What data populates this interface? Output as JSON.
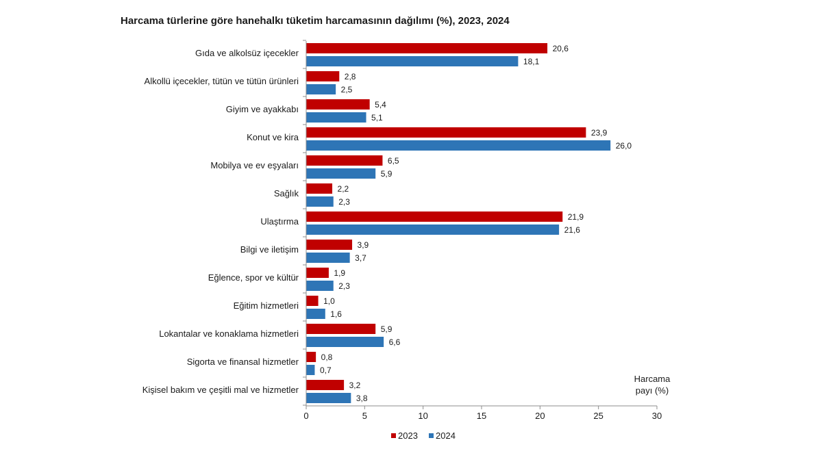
{
  "chart_data": {
    "type": "bar",
    "orientation": "horizontal",
    "title": "Harcama türlerine göre hanehalkı tüketim harcamasının dağılımı (%), 2023, 2024",
    "categories": [
      "Gıda ve alkolsüz içecekler",
      "Alkollü içecekler, tütün ve tütün ürünleri",
      "Giyim ve ayakkabı",
      "Konut ve kira",
      "Mobilya ve ev eşyaları",
      "Sağlık",
      "Ulaştırma",
      "Bilgi ve iletişim",
      "Eğlence, spor ve kültür",
      "Eğitim hizmetleri",
      "Lokantalar ve konaklama hizmetleri",
      "Sigorta ve finansal hizmetler",
      "Kişisel bakım ve çeşitli mal ve hizmetler"
    ],
    "series": [
      {
        "name": "2023",
        "color": "#c00000",
        "values": [
          20.6,
          2.8,
          5.4,
          23.9,
          6.5,
          2.2,
          21.9,
          3.9,
          1.9,
          1.0,
          5.9,
          0.8,
          3.2
        ],
        "labels": [
          "20,6",
          "2,8",
          "5,4",
          "23,9",
          "6,5",
          "2,2",
          "21,9",
          "3,9",
          "1,9",
          "1,0",
          "5,9",
          "0,8",
          "3,2"
        ]
      },
      {
        "name": "2024",
        "color": "#2e75b6",
        "values": [
          18.1,
          2.5,
          5.1,
          26.0,
          5.9,
          2.3,
          21.6,
          3.7,
          2.3,
          1.6,
          6.6,
          0.7,
          3.8
        ],
        "labels": [
          "18,1",
          "2,5",
          "5,1",
          "26,0",
          "5,9",
          "2,3",
          "21,6",
          "3,7",
          "2,3",
          "1,6",
          "6,6",
          "0,7",
          "3,8"
        ]
      }
    ],
    "xlim": [
      0,
      30
    ],
    "xticks": [
      0,
      5,
      10,
      15,
      20,
      25,
      30
    ],
    "xlabel_line1": "Harcama",
    "xlabel_line2": "payı  (%)",
    "legend_position": "bottom-center",
    "grid": false
  }
}
